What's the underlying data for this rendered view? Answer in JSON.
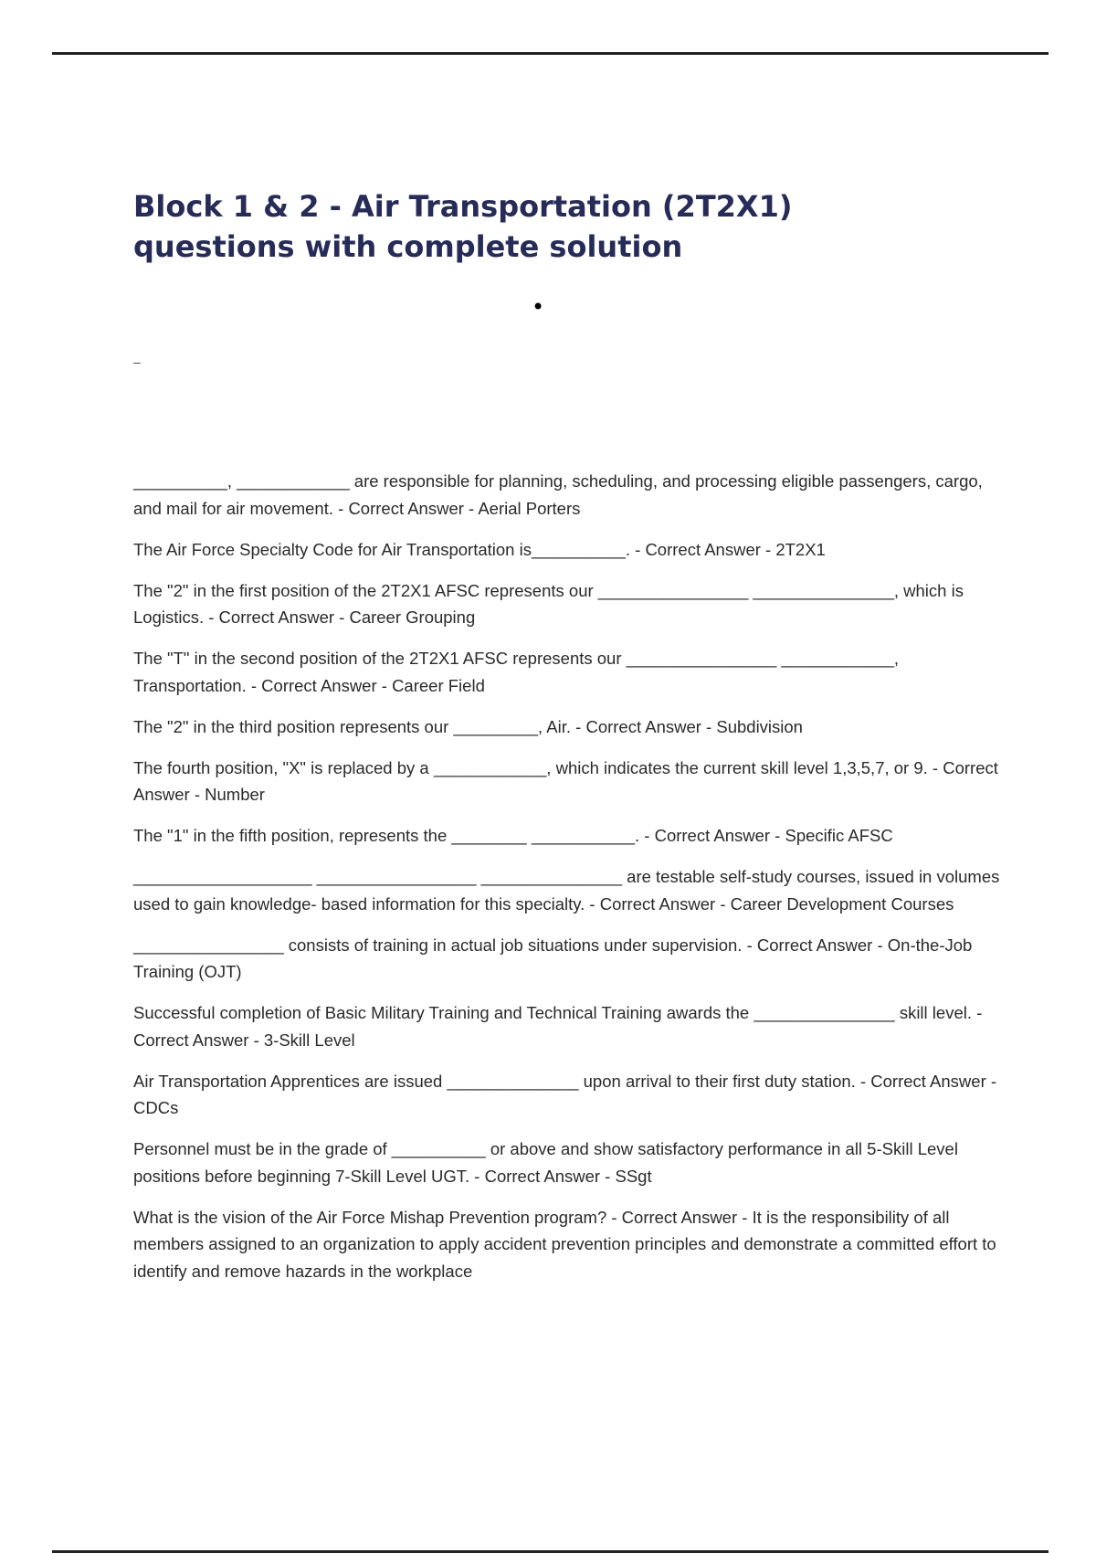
{
  "title": " Block 1 & 2 - Air Transportation (2T2X1) questions with complete solution",
  "bullet": "•",
  "dash": "–",
  "items": [
    "__________, ____________ are responsible for planning, scheduling, and processing eligible passengers, cargo, and mail for air movement. - Correct Answer - Aerial Porters",
    "The Air Force Specialty Code for Air Transportation is__________. - Correct Answer - 2T2X1",
    "The \"2\" in the first position of the 2T2X1 AFSC represents our ________________ _______________, which is Logistics. - Correct Answer - Career Grouping",
    "The \"T\" in the second position of the 2T2X1 AFSC represents our ________________ ____________, Transportation. - Correct Answer - Career Field",
    "The \"2\" in the third position represents our _________, Air. - Correct Answer - Subdivision",
    "The fourth position, \"X\" is replaced by a ____________, which indicates the current skill level 1,3,5,7, or 9. - Correct Answer - Number",
    "The \"1\" in the fifth position, represents the ________ ___________. - Correct Answer - Specific AFSC",
    "___________________ _________________ _______________ are testable self-study courses, issued in volumes used to gain knowledge- based information for this specialty. - Correct Answer - Career Development Courses",
    "________________ consists of training in actual job situations under supervision. - Correct Answer - On-the-Job Training (OJT)",
    "Successful completion of Basic Military Training and Technical Training awards the _______________ skill level. - Correct Answer - 3-Skill Level",
    "Air Transportation Apprentices are issued ______________ upon arrival to their first duty station. - Correct Answer - CDCs",
    "Personnel must be in the grade of __________ or above and show satisfactory performance in all 5-Skill Level positions before beginning 7-Skill Level UGT. - Correct Answer - SSgt",
    "What is the vision of the Air Force Mishap Prevention program? - Correct Answer - It is the responsibility of all members assigned to an organization to apply accident prevention principles and demonstrate a committed effort to identify and remove hazards in the workplace"
  ]
}
